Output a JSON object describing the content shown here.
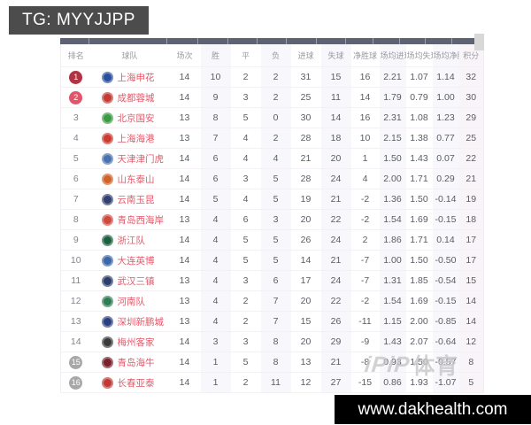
{
  "overlay": {
    "tg_label": "TG: MYYJJPP",
    "watermark_logo": "iPiP",
    "watermark_text": "体育",
    "footer_url": "www.dakhealth.com"
  },
  "colors": {
    "tg_box_bg": "#4c4c4c",
    "top_bar": "#5d6375",
    "team_name": "#e4596a",
    "rank1_badge": "#b23442",
    "rank2_badge": "#e2556a",
    "rank_gray_badge": "#a8a8a8",
    "footer_bg": "#000000"
  },
  "table": {
    "headers": [
      "排名",
      "球队",
      "场次",
      "胜",
      "平",
      "负",
      "进球",
      "失球",
      "净胜球",
      "场均进球",
      "场均失球",
      "场均净胜",
      "积分"
    ],
    "rows": [
      {
        "rank": "1",
        "badge": "#b23442",
        "team": "上海申花",
        "logo_color": "#2a4f9e",
        "played": "14",
        "win": "10",
        "draw": "2",
        "loss": "2",
        "gf": "31",
        "ga": "15",
        "gd": "16",
        "avg_gf": "2.21",
        "avg_ga": "1.07",
        "avg_gd": "1.14",
        "pts": "32"
      },
      {
        "rank": "2",
        "badge": "#e2556a",
        "team": "成都蓉城",
        "logo_color": "#c43b35",
        "played": "14",
        "win": "9",
        "draw": "3",
        "loss": "2",
        "gf": "25",
        "ga": "11",
        "gd": "14",
        "avg_gf": "1.79",
        "avg_ga": "0.79",
        "avg_gd": "1.00",
        "pts": "30"
      },
      {
        "rank": "3",
        "badge": null,
        "team": "北京国安",
        "logo_color": "#3d9a44",
        "played": "13",
        "win": "8",
        "draw": "5",
        "loss": "0",
        "gf": "30",
        "ga": "14",
        "gd": "16",
        "avg_gf": "2.31",
        "avg_ga": "1.08",
        "avg_gd": "1.23",
        "pts": "29"
      },
      {
        "rank": "4",
        "badge": null,
        "team": "上海海港",
        "logo_color": "#cc3a30",
        "played": "13",
        "win": "7",
        "draw": "4",
        "loss": "2",
        "gf": "28",
        "ga": "18",
        "gd": "10",
        "avg_gf": "2.15",
        "avg_ga": "1.38",
        "avg_gd": "0.77",
        "pts": "25"
      },
      {
        "rank": "5",
        "badge": null,
        "team": "天津津门虎",
        "logo_color": "#4a72ae",
        "played": "14",
        "win": "6",
        "draw": "4",
        "loss": "4",
        "gf": "21",
        "ga": "20",
        "gd": "1",
        "avg_gf": "1.50",
        "avg_ga": "1.43",
        "avg_gd": "0.07",
        "pts": "22"
      },
      {
        "rank": "6",
        "badge": null,
        "team": "山东泰山",
        "logo_color": "#d2622a",
        "played": "14",
        "win": "6",
        "draw": "3",
        "loss": "5",
        "gf": "28",
        "ga": "24",
        "gd": "4",
        "avg_gf": "2.00",
        "avg_ga": "1.71",
        "avg_gd": "0.29",
        "pts": "21"
      },
      {
        "rank": "7",
        "badge": null,
        "team": "云南玉昆",
        "logo_color": "#32406f",
        "played": "14",
        "win": "5",
        "draw": "4",
        "loss": "5",
        "gf": "19",
        "ga": "21",
        "gd": "-2",
        "avg_gf": "1.36",
        "avg_ga": "1.50",
        "avg_gd": "-0.14",
        "pts": "19"
      },
      {
        "rank": "8",
        "badge": null,
        "team": "青岛西海岸",
        "logo_color": "#cf4a3c",
        "played": "13",
        "win": "4",
        "draw": "6",
        "loss": "3",
        "gf": "20",
        "ga": "22",
        "gd": "-2",
        "avg_gf": "1.54",
        "avg_ga": "1.69",
        "avg_gd": "-0.15",
        "pts": "18"
      },
      {
        "rank": "9",
        "badge": null,
        "team": "浙江队",
        "logo_color": "#1f5f41",
        "played": "14",
        "win": "4",
        "draw": "5",
        "loss": "5",
        "gf": "26",
        "ga": "24",
        "gd": "2",
        "avg_gf": "1.86",
        "avg_ga": "1.71",
        "avg_gd": "0.14",
        "pts": "17"
      },
      {
        "rank": "10",
        "badge": null,
        "team": "大连英博",
        "logo_color": "#3b66a8",
        "played": "14",
        "win": "4",
        "draw": "5",
        "loss": "5",
        "gf": "14",
        "ga": "21",
        "gd": "-7",
        "avg_gf": "1.00",
        "avg_ga": "1.50",
        "avg_gd": "-0.50",
        "pts": "17"
      },
      {
        "rank": "11",
        "badge": null,
        "team": "武汉三镇",
        "logo_color": "#2a3f6e",
        "played": "13",
        "win": "4",
        "draw": "3",
        "loss": "6",
        "gf": "17",
        "ga": "24",
        "gd": "-7",
        "avg_gf": "1.31",
        "avg_ga": "1.85",
        "avg_gd": "-0.54",
        "pts": "15"
      },
      {
        "rank": "12",
        "badge": null,
        "team": "河南队",
        "logo_color": "#2f7d52",
        "played": "13",
        "win": "4",
        "draw": "2",
        "loss": "7",
        "gf": "20",
        "ga": "22",
        "gd": "-2",
        "avg_gf": "1.54",
        "avg_ga": "1.69",
        "avg_gd": "-0.15",
        "pts": "14"
      },
      {
        "rank": "13",
        "badge": null,
        "team": "深圳新鹏城",
        "logo_color": "#2b4080",
        "played": "13",
        "win": "4",
        "draw": "2",
        "loss": "7",
        "gf": "15",
        "ga": "26",
        "gd": "-11",
        "avg_gf": "1.15",
        "avg_ga": "2.00",
        "avg_gd": "-0.85",
        "pts": "14"
      },
      {
        "rank": "14",
        "badge": null,
        "team": "梅州客家",
        "logo_color": "#3a3a3a",
        "played": "14",
        "win": "3",
        "draw": "3",
        "loss": "8",
        "gf": "20",
        "ga": "29",
        "gd": "-9",
        "avg_gf": "1.43",
        "avg_ga": "2.07",
        "avg_gd": "-0.64",
        "pts": "12"
      },
      {
        "rank": "15",
        "badge": "#a8a8a8",
        "team": "青岛海牛",
        "logo_color": "#79222c",
        "played": "14",
        "win": "1",
        "draw": "5",
        "loss": "8",
        "gf": "13",
        "ga": "21",
        "gd": "-8",
        "avg_gf": "0.93",
        "avg_ga": "1.50",
        "avg_gd": "-0.57",
        "pts": "8"
      },
      {
        "rank": "16",
        "badge": "#a8a8a8",
        "team": "长春亚泰",
        "logo_color": "#bf3a35",
        "played": "14",
        "win": "1",
        "draw": "2",
        "loss": "11",
        "gf": "12",
        "ga": "27",
        "gd": "-15",
        "avg_gf": "0.86",
        "avg_ga": "1.93",
        "avg_gd": "-1.07",
        "pts": "5"
      }
    ]
  }
}
